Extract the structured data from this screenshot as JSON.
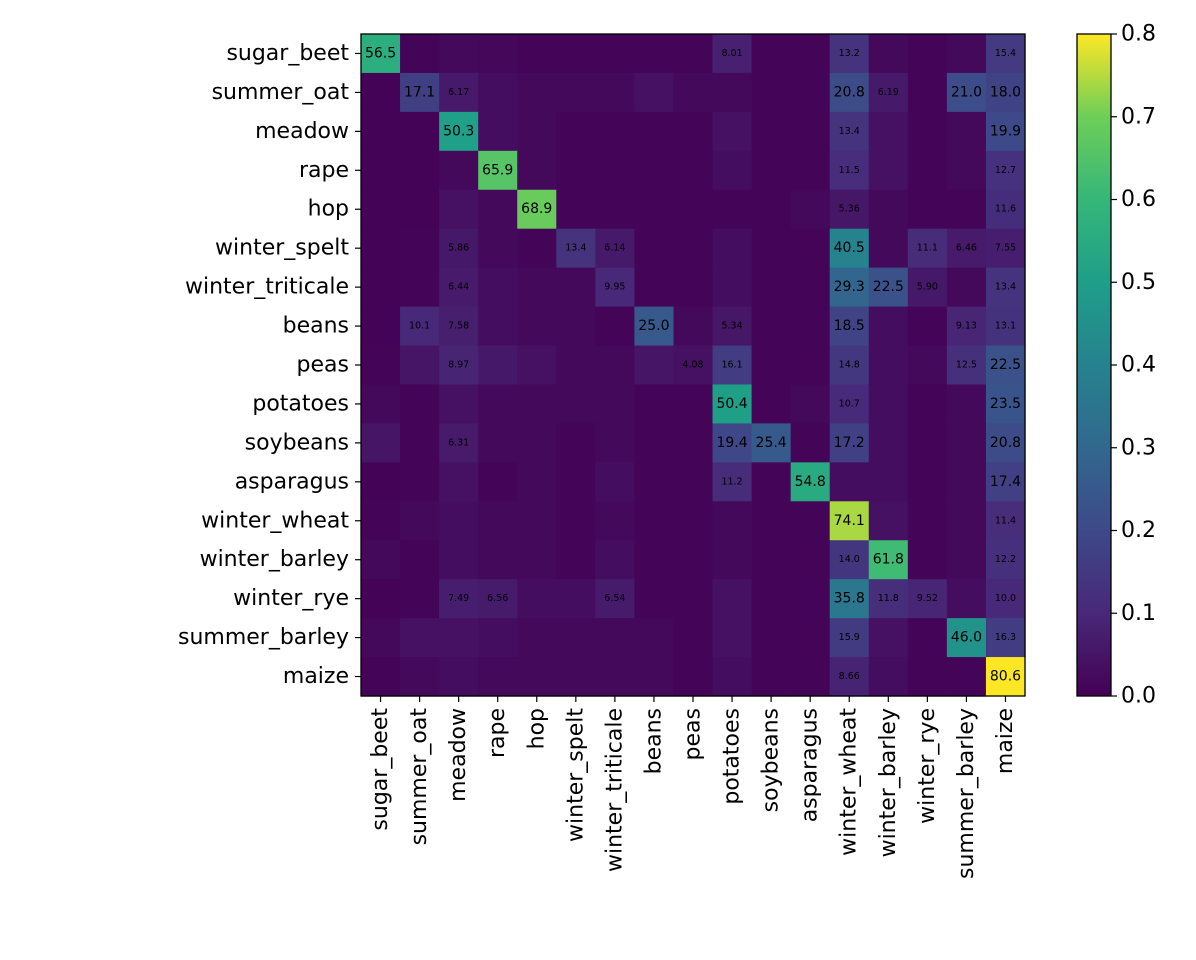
{
  "chart_data": {
    "type": "heatmap",
    "title": "",
    "xlabel": "",
    "ylabel": "",
    "colormap": "viridis",
    "grid": false,
    "legend": "colorbar-right",
    "categories": [
      "sugar_beet",
      "summer_oat",
      "meadow",
      "rape",
      "hop",
      "winter_spelt",
      "winter_triticale",
      "beans",
      "peas",
      "potatoes",
      "soybeans",
      "asparagus",
      "winter_wheat",
      "winter_barley",
      "winter_rye",
      "summer_barley",
      "maize"
    ],
    "values": [
      [
        0.565,
        0.01,
        0.02,
        0.015,
        0.01,
        0.01,
        0.01,
        0.01,
        0.01,
        0.0801,
        0.01,
        0.01,
        0.132,
        0.02,
        0.01,
        0.02,
        0.154
      ],
      [
        0.005,
        0.171,
        0.0617,
        0.03,
        0.02,
        0.02,
        0.02,
        0.04,
        0.02,
        0.02,
        0.01,
        0.01,
        0.208,
        0.0619,
        0.01,
        0.21,
        0.18
      ],
      [
        0.005,
        0.005,
        0.503,
        0.03,
        0.02,
        0.01,
        0.01,
        0.01,
        0.01,
        0.04,
        0.01,
        0.01,
        0.134,
        0.04,
        0.01,
        0.02,
        0.199
      ],
      [
        0.005,
        0.005,
        0.02,
        0.659,
        0.02,
        0.01,
        0.01,
        0.01,
        0.01,
        0.03,
        0.01,
        0.01,
        0.115,
        0.04,
        0.01,
        0.02,
        0.127
      ],
      [
        0.005,
        0.005,
        0.04,
        0.02,
        0.689,
        0.01,
        0.01,
        0.01,
        0.01,
        0.01,
        0.01,
        0.02,
        0.0536,
        0.02,
        0.01,
        0.01,
        0.116
      ],
      [
        0.005,
        0.01,
        0.0586,
        0.02,
        0.01,
        0.134,
        0.0614,
        0.01,
        0.01,
        0.03,
        0.01,
        0.01,
        0.405,
        0.02,
        0.111,
        0.0646,
        0.0755
      ],
      [
        0.005,
        0.01,
        0.0644,
        0.03,
        0.02,
        0.02,
        0.0995,
        0.01,
        0.01,
        0.03,
        0.01,
        0.01,
        0.293,
        0.225,
        0.059,
        0.02,
        0.134
      ],
      [
        0.005,
        0.101,
        0.0758,
        0.03,
        0.02,
        0.02,
        0.01,
        0.25,
        0.02,
        0.0534,
        0.01,
        0.01,
        0.185,
        0.03,
        0.01,
        0.0913,
        0.131
      ],
      [
        0.01,
        0.05,
        0.0897,
        0.06,
        0.04,
        0.02,
        0.02,
        0.05,
        0.0408,
        0.161,
        0.01,
        0.01,
        0.148,
        0.03,
        0.02,
        0.125,
        0.225
      ],
      [
        0.02,
        0.01,
        0.04,
        0.02,
        0.02,
        0.02,
        0.02,
        0.01,
        0.01,
        0.504,
        0.01,
        0.02,
        0.107,
        0.03,
        0.01,
        0.02,
        0.235
      ],
      [
        0.05,
        0.01,
        0.0631,
        0.02,
        0.02,
        0.01,
        0.02,
        0.01,
        0.01,
        0.194,
        0.254,
        0.01,
        0.172,
        0.03,
        0.01,
        0.02,
        0.208
      ],
      [
        0.005,
        0.01,
        0.04,
        0.01,
        0.02,
        0.01,
        0.03,
        0.01,
        0.01,
        0.112,
        0.01,
        0.548,
        0.03,
        0.03,
        0.01,
        0.02,
        0.174
      ],
      [
        0.01,
        0.02,
        0.03,
        0.02,
        0.02,
        0.01,
        0.02,
        0.01,
        0.01,
        0.02,
        0.01,
        0.01,
        0.741,
        0.04,
        0.01,
        0.02,
        0.114
      ],
      [
        0.02,
        0.01,
        0.03,
        0.02,
        0.02,
        0.01,
        0.03,
        0.01,
        0.01,
        0.02,
        0.01,
        0.01,
        0.14,
        0.618,
        0.01,
        0.02,
        0.122
      ],
      [
        0.005,
        0.01,
        0.0749,
        0.0656,
        0.03,
        0.03,
        0.0654,
        0.01,
        0.01,
        0.04,
        0.01,
        0.01,
        0.358,
        0.118,
        0.0952,
        0.03,
        0.1
      ],
      [
        0.02,
        0.04,
        0.04,
        0.03,
        0.02,
        0.02,
        0.02,
        0.02,
        0.01,
        0.04,
        0.01,
        0.01,
        0.159,
        0.04,
        0.01,
        0.46,
        0.163
      ],
      [
        0.01,
        0.02,
        0.03,
        0.02,
        0.02,
        0.02,
        0.02,
        0.02,
        0.01,
        0.03,
        0.01,
        0.01,
        0.0866,
        0.03,
        0.01,
        0.01,
        0.806
      ]
    ],
    "cell_labels": [
      [
        "56.5",
        "",
        "",
        "",
        "",
        "",
        "",
        "",
        "",
        "8.01",
        "",
        "",
        "13.2",
        "",
        "",
        "",
        "15.4"
      ],
      [
        "",
        "17.1",
        "6.17",
        "",
        "",
        "",
        "",
        "",
        "",
        "",
        "",
        "",
        "20.8",
        "6.19",
        "",
        "21.0",
        "18.0"
      ],
      [
        "",
        "",
        "50.3",
        "",
        "",
        "",
        "",
        "",
        "",
        "",
        "",
        "",
        "13.4",
        "",
        "",
        "",
        "19.9"
      ],
      [
        "",
        "",
        "",
        "65.9",
        "",
        "",
        "",
        "",
        "",
        "",
        "",
        "",
        "11.5",
        "",
        "",
        "",
        "12.7"
      ],
      [
        "",
        "",
        "",
        "",
        "68.9",
        "",
        "",
        "",
        "",
        "",
        "",
        "",
        "5.36",
        "",
        "",
        "",
        "11.6"
      ],
      [
        "",
        "",
        "5.86",
        "",
        "",
        "13.4",
        "6.14",
        "",
        "",
        "",
        "",
        "",
        "40.5",
        "",
        "11.1",
        "6.46",
        "7.55"
      ],
      [
        "",
        "",
        "6.44",
        "",
        "",
        "",
        "9.95",
        "",
        "",
        "",
        "",
        "",
        "29.3",
        "22.5",
        "5.90",
        "",
        "13.4"
      ],
      [
        "",
        "10.1",
        "7.58",
        "",
        "",
        "",
        "",
        "25.0",
        "",
        "5.34",
        "",
        "",
        "18.5",
        "",
        "",
        "9.13",
        "13.1"
      ],
      [
        "",
        "",
        "8.97",
        "",
        "",
        "",
        "",
        "",
        "4.08",
        "16.1",
        "",
        "",
        "14.8",
        "",
        "",
        "12.5",
        "22.5"
      ],
      [
        "",
        "",
        "",
        "",
        "",
        "",
        "",
        "",
        "",
        "50.4",
        "",
        "",
        "10.7",
        "",
        "",
        "",
        "23.5"
      ],
      [
        "",
        "",
        "6.31",
        "",
        "",
        "",
        "",
        "",
        "",
        "19.4",
        "25.4",
        "",
        "17.2",
        "",
        "",
        "",
        "20.8"
      ],
      [
        "",
        "",
        "",
        "",
        "",
        "",
        "",
        "",
        "",
        "11.2",
        "",
        "54.8",
        "",
        "",
        "",
        "",
        "17.4"
      ],
      [
        "",
        "",
        "",
        "",
        "",
        "",
        "",
        "",
        "",
        "",
        "",
        "",
        "74.1",
        "",
        "",
        "",
        "11.4"
      ],
      [
        "",
        "",
        "",
        "",
        "",
        "",
        "",
        "",
        "",
        "",
        "",
        "",
        "14.0",
        "61.8",
        "",
        "",
        "12.2"
      ],
      [
        "",
        "",
        "7.49",
        "6.56",
        "",
        "",
        "6.54",
        "",
        "",
        "",
        "",
        "",
        "35.8",
        "11.8",
        "9.52",
        "",
        "10.0"
      ],
      [
        "",
        "",
        "",
        "",
        "",
        "",
        "",
        "",
        "",
        "",
        "",
        "",
        "15.9",
        "",
        "",
        "46.0",
        "16.3"
      ],
      [
        "",
        "",
        "",
        "",
        "",
        "",
        "",
        "",
        "",
        "",
        "",
        "",
        "8.66",
        "",
        "",
        "",
        "80.6"
      ]
    ],
    "colorbar": {
      "range": [
        0.0,
        0.8
      ],
      "ticks": [
        "0.0",
        "0.1",
        "0.2",
        "0.3",
        "0.4",
        "0.5",
        "0.6",
        "0.7",
        "0.8"
      ]
    }
  }
}
